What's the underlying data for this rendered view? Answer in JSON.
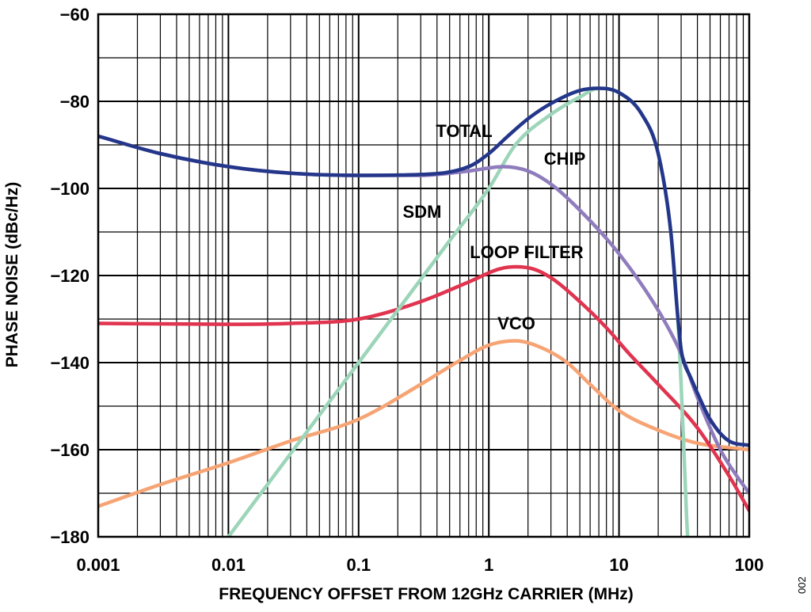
{
  "figure_id": "002",
  "chart_data": {
    "type": "line",
    "xlabel": "FREQUENCY OFFSET FROM 12GHz CARRIER (MHz)",
    "ylabel": "PHASE NOISE (dBc/Hz)",
    "x_scale": "log",
    "xlim": [
      0.001,
      100
    ],
    "ylim": [
      -180,
      -60
    ],
    "x_ticks": [
      "0.001",
      "0.01",
      "0.1",
      "1",
      "10",
      "100"
    ],
    "y_ticks": [
      "−60",
      "−80",
      "−100",
      "−120",
      "−140",
      "−160",
      "−180"
    ],
    "grid": true,
    "series": [
      {
        "name": "VCO",
        "color": "#f6a474",
        "x": [
          0.001,
          0.003,
          0.01,
          0.03,
          0.1,
          0.3,
          0.6,
          1,
          1.6,
          2.5,
          4,
          6,
          10,
          20,
          40,
          100
        ],
        "y": [
          -173,
          -168,
          -163,
          -158,
          -153,
          -145,
          -139.5,
          -136,
          -135,
          -136.5,
          -140,
          -145,
          -151,
          -155.5,
          -158.5,
          -160
        ]
      },
      {
        "name": "LOOP FILTER",
        "color": "#e0344f",
        "x": [
          0.001,
          0.01,
          0.03,
          0.1,
          0.3,
          0.7,
          1.2,
          1.6,
          2.2,
          3,
          5,
          8,
          12,
          20,
          40,
          70,
          100
        ],
        "y": [
          -131,
          -131.2,
          -131,
          -130,
          -126,
          -121.5,
          -118.5,
          -118,
          -118.5,
          -120.5,
          -126,
          -132,
          -138,
          -145,
          -155,
          -166,
          -174
        ]
      },
      {
        "name": "SDM",
        "color": "#9cd5b9",
        "x": [
          0.01,
          0.1,
          0.5,
          1,
          1.6,
          3,
          5,
          7,
          10,
          15,
          20,
          25,
          28,
          30,
          32,
          33,
          34
        ],
        "y": [
          -180,
          -140,
          -112,
          -100,
          -90,
          -83,
          -79,
          -77,
          -78,
          -83,
          -92,
          -110,
          -128,
          -145,
          -165,
          -175,
          -183
        ]
      },
      {
        "name": "CHIP",
        "color": "#8f7cbd",
        "x": [
          0.001,
          0.003,
          0.01,
          0.03,
          0.1,
          0.3,
          0.7,
          1.3,
          2,
          3,
          5,
          10,
          20,
          30,
          40,
          60,
          80,
          100
        ],
        "y": [
          -88,
          -92,
          -95,
          -96.5,
          -97,
          -97,
          -96,
          -95,
          -96,
          -99,
          -105,
          -115,
          -128,
          -138,
          -148,
          -160,
          -166,
          -170
        ]
      },
      {
        "name": "TOTAL",
        "color": "#24368a",
        "x": [
          0.001,
          0.003,
          0.01,
          0.03,
          0.1,
          0.3,
          0.7,
          1,
          1.4,
          2,
          3,
          5,
          7,
          10,
          15,
          20,
          25,
          28,
          30,
          32,
          35,
          40,
          50,
          70,
          100
        ],
        "y": [
          -88,
          -92,
          -95,
          -96.5,
          -97,
          -96.8,
          -95,
          -92,
          -88,
          -84,
          -80.5,
          -77.5,
          -77,
          -78,
          -83,
          -92,
          -110,
          -128,
          -137,
          -140.5,
          -143,
          -147,
          -153,
          -158,
          -159
        ]
      }
    ],
    "annotations": [
      "TOTAL",
      "CHIP",
      "SDM",
      "LOOP FILTER",
      "VCO"
    ]
  }
}
